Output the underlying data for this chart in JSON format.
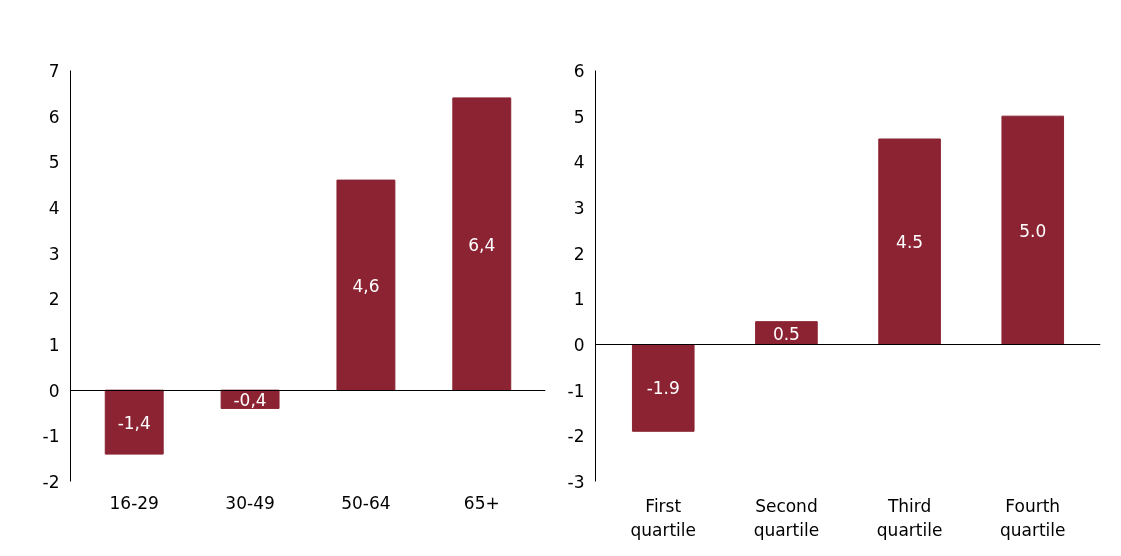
{
  "chart_data": [
    {
      "type": "bar",
      "categories": [
        "16-29",
        "30-49",
        "50-64",
        "65+"
      ],
      "series": [
        {
          "color": "#8b2332",
          "values": [
            -1.4,
            -0.4,
            4.6,
            6.4
          ],
          "value_labels": [
            "-1,4",
            "-0,4",
            "4,6",
            "6,4"
          ]
        }
      ],
      "ylim": [
        -2,
        7
      ],
      "yticks": [
        -2,
        -1,
        0,
        1,
        2,
        3,
        4,
        5,
        6,
        7
      ]
    },
    {
      "type": "bar",
      "categories": [
        "First quartile",
        "Second quartile",
        "Third quartile",
        "Fourth quartile"
      ],
      "series": [
        {
          "color": "#8b2332",
          "values": [
            -1.9,
            0.5,
            4.5,
            5.0
          ],
          "value_labels": [
            "-1.9",
            "0.5",
            "4.5",
            "5.0"
          ]
        }
      ],
      "ylim": [
        -3,
        6
      ],
      "yticks": [
        -3,
        -2,
        -1,
        0,
        1,
        2,
        3,
        4,
        5,
        6
      ]
    }
  ]
}
